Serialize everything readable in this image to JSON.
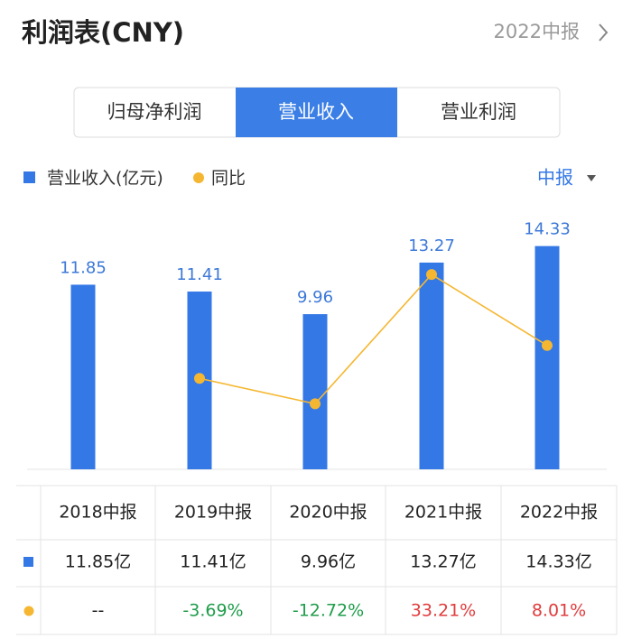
{
  "header": {
    "title": "利润表(CNY)",
    "period": "2022中报"
  },
  "tabs": [
    "归母净利润",
    "营业收入",
    "营业利润"
  ],
  "period_selector": "中报",
  "chart_data": {
    "type": "bar-line",
    "categories": [
      "2018中报",
      "2019中报",
      "2020中报",
      "2021中报",
      "2022中报"
    ],
    "ylim": [
      0,
      16.8
    ],
    "y2lim": [
      -36,
      57
    ],
    "series": [
      {
        "name": "营业收入(亿元)",
        "color": "#3478e6",
        "values": [
          11.85,
          11.41,
          9.96,
          13.27,
          14.33
        ],
        "value_labels": [
          "11.85亿",
          "11.41亿",
          "9.96亿",
          "13.27亿",
          "14.33亿"
        ]
      },
      {
        "name": "同比",
        "color": "#f5b731",
        "axis": "y2",
        "values": [
          null,
          -3.69,
          -12.72,
          33.21,
          8.01
        ],
        "value_labels": [
          "--",
          "-3.69%",
          "-12.72%",
          "33.21%",
          "8.01%"
        ]
      }
    ]
  }
}
